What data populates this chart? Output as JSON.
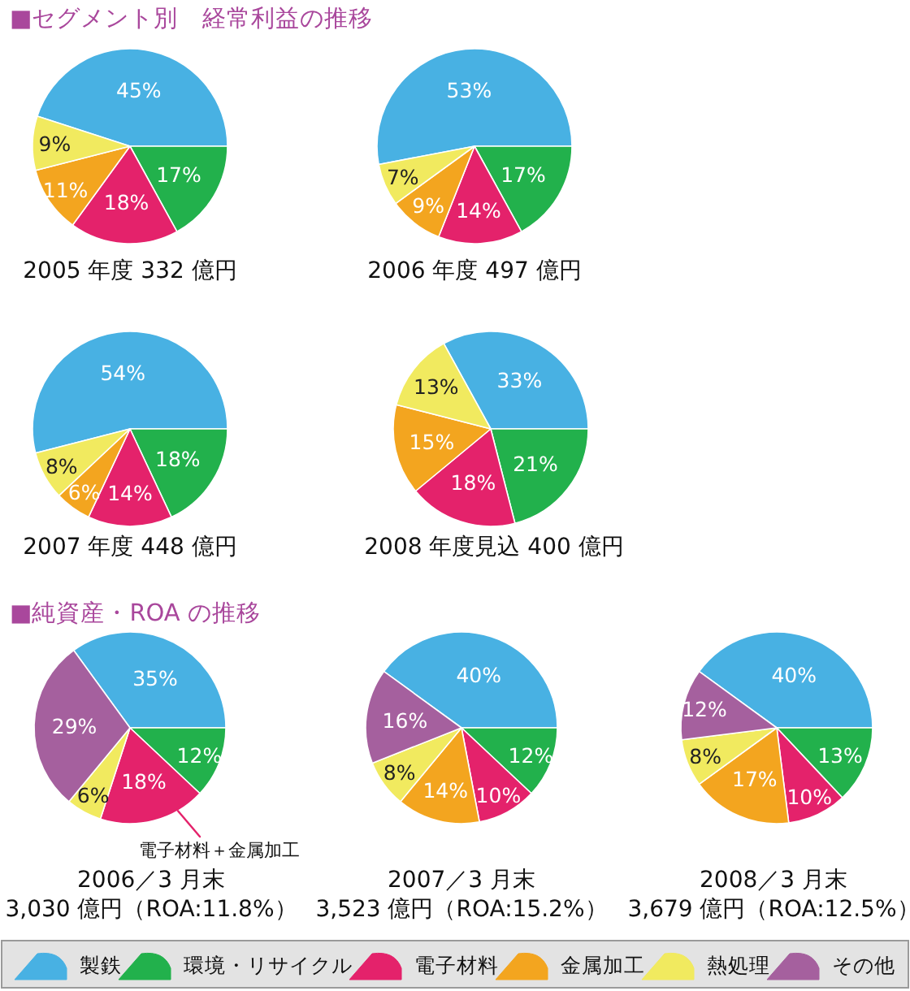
{
  "chart_data": [
    {
      "type": "pie",
      "title": "2005 年度 332 億円",
      "annotations": [
        "■セグメント別　経常利益の推移"
      ],
      "categories": [
        null,
        null,
        null,
        null,
        null
      ],
      "values": [
        45,
        17,
        18,
        11,
        9
      ],
      "colors": [
        "#48b1e3",
        "#22b14c",
        "#e4226b",
        "#f3a51f",
        "#f1ea5f"
      ],
      "value_labels": [
        "45%",
        "17%",
        "18%",
        "11%",
        "9%"
      ]
    },
    {
      "type": "pie",
      "title": "2006 年度 497 億円",
      "categories": [
        null,
        null,
        null,
        null,
        null
      ],
      "values": [
        53,
        17,
        14,
        9,
        7
      ],
      "colors": [
        "#48b1e3",
        "#22b14c",
        "#e4226b",
        "#f3a51f",
        "#f1ea5f"
      ],
      "value_labels": [
        "53%",
        "17%",
        "14%",
        "9%",
        "7%"
      ]
    },
    {
      "type": "pie",
      "title": "2007 年度 448 億円",
      "categories": [
        null,
        null,
        null,
        null,
        null
      ],
      "values": [
        54,
        18,
        14,
        6,
        8
      ],
      "colors": [
        "#48b1e3",
        "#22b14c",
        "#e4226b",
        "#f3a51f",
        "#f1ea5f"
      ],
      "value_labels": [
        "54%",
        "18%",
        "14%",
        "6%",
        "8%"
      ]
    },
    {
      "type": "pie",
      "title": "2008 年度見込 400 億円",
      "categories": [
        null,
        null,
        null,
        null,
        null
      ],
      "values": [
        33,
        21,
        18,
        15,
        13
      ],
      "colors": [
        "#48b1e3",
        "#22b14c",
        "#e4226b",
        "#f3a51f",
        "#f1ea5f"
      ],
      "value_labels": [
        "33%",
        "21%",
        "18%",
        "15%",
        "13%"
      ]
    },
    {
      "type": "pie",
      "title": "2006／3 月末",
      "subtitle": "3,030 億円（ROA:11.8%）",
      "annotations": [
        "■純資産・ROA の推移",
        "電子材料＋金属加工"
      ],
      "categories": [
        null,
        null,
        null,
        null,
        null
      ],
      "values": [
        35,
        12,
        18,
        6,
        29
      ],
      "colors": [
        "#48b1e3",
        "#22b14c",
        "#e4226b",
        "#f1ea5f",
        "#a5609e"
      ],
      "value_labels": [
        "35%",
        "12%",
        "18%",
        "6%",
        "29%"
      ]
    },
    {
      "type": "pie",
      "title": "2007／3 月末",
      "subtitle": "3,523 億円（ROA:15.2%）",
      "categories": [
        null,
        null,
        null,
        null,
        null,
        null
      ],
      "values": [
        40,
        12,
        10,
        14,
        8,
        16
      ],
      "colors": [
        "#48b1e3",
        "#22b14c",
        "#e4226b",
        "#f3a51f",
        "#f1ea5f",
        "#a5609e"
      ],
      "value_labels": [
        "40%",
        "12%",
        "10%",
        "14%",
        "8%",
        "16%"
      ]
    },
    {
      "type": "pie",
      "title": "2008／3 月末",
      "subtitle": "3,679 億円（ROA:12.5%）",
      "legend": "bottom",
      "categories": [
        "製鉄",
        "環境・リサイクル",
        "電子材料",
        "金属加工",
        "熱処理",
        "その他"
      ],
      "values": [
        40,
        13,
        10,
        17,
        8,
        12
      ],
      "colors": [
        "#48b1e3",
        "#22b14c",
        "#e4226b",
        "#f3a51f",
        "#f1ea5f",
        "#a5609e"
      ],
      "value_labels": [
        "40%",
        "13%",
        "10%",
        "17%",
        "8%",
        "12%"
      ]
    }
  ]
}
